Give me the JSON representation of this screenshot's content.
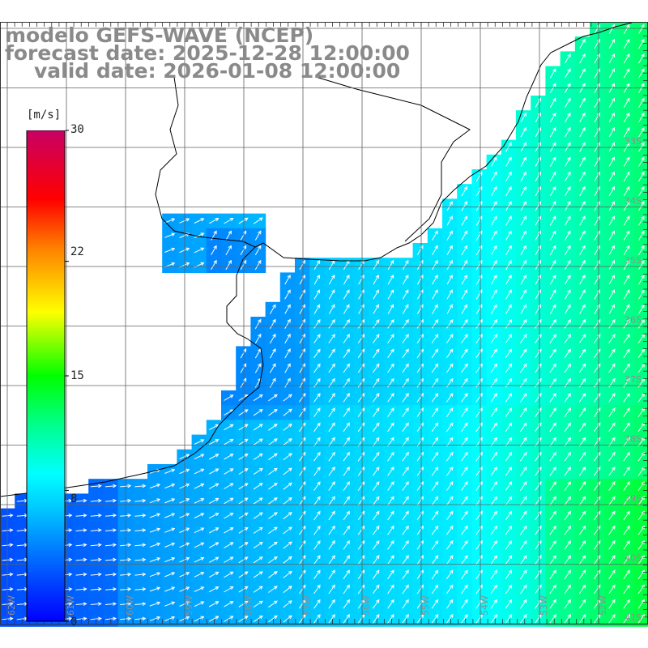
{
  "header": {
    "title": "modelo GEFS-WAVE (NCEP)",
    "forecast": "forecast date: 2025-12-28 12:00:00",
    "valid": "valid date: 2026-01-08 12:00:00"
  },
  "colorbar": {
    "unit": "[m/s]",
    "ticks": [
      {
        "value": 30,
        "label": "30"
      },
      {
        "value": 22,
        "label": "22"
      },
      {
        "value": 15,
        "label": "15"
      },
      {
        "value": 8,
        "label": "8"
      },
      {
        "value": 0,
        "label": "0"
      }
    ],
    "min": 0,
    "max": 30,
    "colors": [
      "#0000ff",
      "#00c8ff",
      "#00ffff",
      "#00ff00",
      "#ffff00",
      "#ff8000",
      "#ff0000",
      "#c80064"
    ]
  },
  "axes": {
    "lat_labels": [
      "33S",
      "34S",
      "35S",
      "36S",
      "37S",
      "38S",
      "39S",
      "40S",
      "41S"
    ],
    "lon_labels": [
      "62W",
      "61W",
      "60W",
      "59W",
      "58W",
      "57W",
      "56W",
      "55W",
      "54W",
      "53W",
      "52W"
    ]
  },
  "colors": {
    "land": "#ffffff",
    "grid": "#606060",
    "arrow": "#ffffff",
    "coast": "#000000",
    "title_text": "#8a8a8a"
  }
}
